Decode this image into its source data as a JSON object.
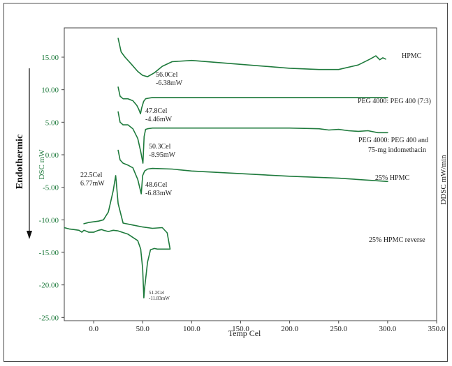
{
  "chart_data": {
    "type": "line",
    "xlabel": "Temp Cel",
    "ylabel": "DSC mW",
    "y2label": "DDSC mW/min",
    "side_label": "Endothermic",
    "xlim": [
      -30,
      350
    ],
    "ylim": [
      -25.5,
      19.5
    ],
    "xticks": [
      0,
      50,
      100,
      150,
      200,
      250,
      300,
      350
    ],
    "xtick_labels": [
      "0.0",
      "50.0",
      "100.0",
      "150.0",
      "200.0",
      "250.0",
      "300.0",
      "350.0"
    ],
    "yticks": [
      15,
      10,
      5,
      0,
      -5,
      -10,
      -15,
      -20,
      -25
    ],
    "ytick_labels": [
      "15.00",
      "10.00",
      "5.00",
      "0.00",
      "-5.00",
      "-10.00",
      "-15.00",
      "-20.00",
      "-25.00"
    ],
    "colors": {
      "curve": "#1e7a3c",
      "axis_text": "#1e7a3c",
      "frame": "#333333",
      "text": "#222222"
    },
    "series": [
      {
        "name": "HPMC",
        "x": [
          25,
          28,
          32,
          38,
          45,
          50,
          55,
          62,
          70,
          80,
          100,
          150,
          200,
          230,
          250,
          270,
          282,
          288,
          292,
          295,
          298
        ],
        "y": [
          17.9,
          15.8,
          15.0,
          14.0,
          12.8,
          12.2,
          12.0,
          12.6,
          13.6,
          14.3,
          14.5,
          13.9,
          13.3,
          13.1,
          13.1,
          13.8,
          14.7,
          15.2,
          14.6,
          14.9,
          14.7
        ]
      },
      {
        "name": "PEG 4000: PEG 400 (7:3)",
        "x": [
          25,
          27,
          30,
          35,
          40,
          44,
          46,
          47.8,
          49,
          51,
          53,
          56,
          60,
          70,
          100,
          150,
          200,
          250,
          300
        ],
        "y": [
          10.4,
          9.0,
          8.6,
          8.6,
          8.3,
          7.6,
          7.0,
          6.3,
          7.2,
          8.2,
          8.6,
          8.7,
          8.8,
          8.8,
          8.8,
          8.8,
          8.8,
          8.8,
          8.8
        ]
      },
      {
        "name": "PEG 4000: PEG 400 and 75-mg indomethacin",
        "x": [
          25,
          27,
          30,
          35,
          40,
          45,
          48,
          50.3,
          51.5,
          53,
          55,
          60,
          70,
          100,
          150,
          200,
          230,
          240,
          250,
          260,
          270,
          280,
          290,
          300
        ],
        "y": [
          6.6,
          5.0,
          4.6,
          4.6,
          4.0,
          2.5,
          0.5,
          -1.3,
          2.8,
          3.9,
          4.0,
          4.1,
          4.1,
          4.1,
          4.1,
          4.1,
          4.0,
          3.8,
          3.9,
          3.7,
          3.6,
          3.7,
          3.4,
          3.4
        ]
      },
      {
        "name": "25% HPMC",
        "x": [
          25,
          27,
          30,
          35,
          40,
          45,
          48.6,
          50,
          52,
          55,
          60,
          80,
          100,
          150,
          200,
          250,
          300
        ],
        "y": [
          0.7,
          -0.8,
          -1.3,
          -1.6,
          -2.0,
          -3.8,
          -6.0,
          -3.2,
          -2.5,
          -2.2,
          -2.1,
          -2.2,
          -2.5,
          -2.9,
          -3.3,
          -3.6,
          -4.1
        ]
      },
      {
        "name": "25% HPMC reverse",
        "x": [
          -40,
          -35,
          -30,
          -25,
          -20,
          -15,
          -12,
          -10,
          -5,
          0,
          5,
          8,
          10,
          15,
          20,
          25,
          35,
          45,
          48,
          50,
          51.2,
          52,
          55,
          58,
          62,
          65,
          70,
          74,
          78,
          75,
          70,
          60,
          50,
          40,
          30,
          25,
          22.5,
          20,
          15,
          10,
          5,
          -5,
          -10
        ],
        "y": [
          -10.8,
          -11.0,
          -11.2,
          -11.4,
          -11.5,
          -11.6,
          -11.9,
          -11.6,
          -11.9,
          -11.9,
          -11.6,
          -11.5,
          -11.6,
          -11.8,
          -11.6,
          -11.7,
          -12.2,
          -13.2,
          -14.5,
          -17.5,
          -22.0,
          -20.5,
          -16.5,
          -14.6,
          -14.4,
          -14.5,
          -14.5,
          -14.5,
          -14.5,
          -12.0,
          -11.2,
          -11.3,
          -11.1,
          -10.8,
          -10.5,
          -7.5,
          -3.2,
          -5.5,
          -8.8,
          -10.0,
          -10.2,
          -10.4,
          -10.6
        ]
      }
    ],
    "series_labels": [
      {
        "text": "HPMC"
      },
      {
        "text": "PEG 4000: PEG 400 (7:3)"
      },
      {
        "text": "PEG 4000: PEG 400 and"
      },
      {
        "text": "75-mg indomethacin"
      },
      {
        "text": "25% HPMC"
      },
      {
        "text": "25% HPMC reverse"
      }
    ],
    "annotations": [
      {
        "temp": "56.0Cel",
        "power": "-6.38mW"
      },
      {
        "temp": "47.8Cel",
        "power": "-4.46mW"
      },
      {
        "temp": "50.3Cel",
        "power": "-8.95mW"
      },
      {
        "temp": "48.6Cel",
        "power": "-6.83mW"
      },
      {
        "temp": "22.5Cel",
        "power": "6.77mW"
      },
      {
        "temp": "51.2Cel",
        "power": "-11.83mW"
      }
    ]
  }
}
